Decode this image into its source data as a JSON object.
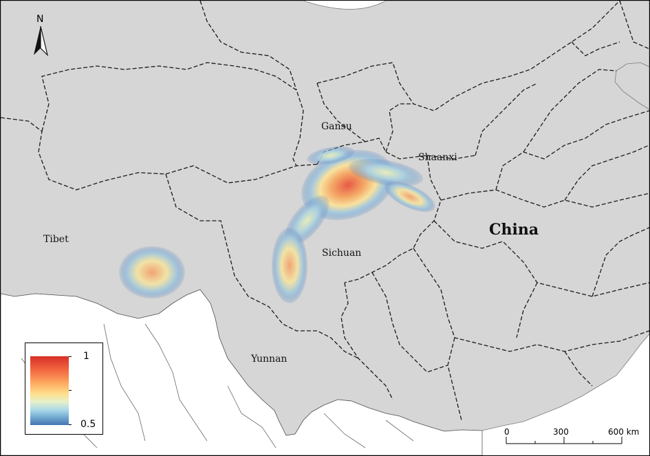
{
  "map": {
    "country_label": "China",
    "region_labels": {
      "gansu": "Gansu",
      "shaanxi": "Shaanxi",
      "tibet": "Tibet",
      "sichuan": "Sichuan",
      "yunnan": "Yunnan"
    }
  },
  "north_arrow": {
    "label": "N"
  },
  "legend": {
    "max_label": "1",
    "min_label": "0.5",
    "colors": [
      "#d73027",
      "#fdae61",
      "#fee090",
      "#abd9e9",
      "#4575b4"
    ]
  },
  "scale_bar": {
    "labels": [
      "0",
      "300",
      "600 km"
    ]
  },
  "colors": {
    "land": "#d6d6d6",
    "outside": "#ffffff",
    "border": "#1a1a1a"
  }
}
